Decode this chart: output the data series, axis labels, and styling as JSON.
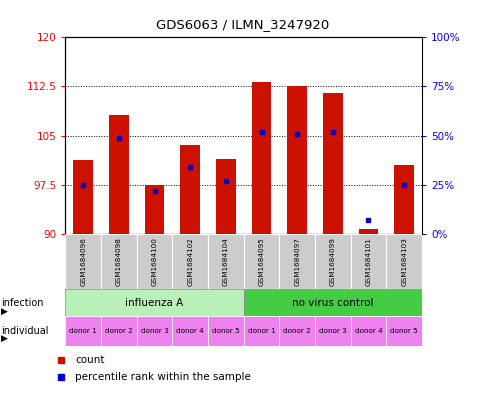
{
  "title": "GDS6063 / ILMN_3247920",
  "samples": [
    "GSM1684096",
    "GSM1684098",
    "GSM1684100",
    "GSM1684102",
    "GSM1684104",
    "GSM1684095",
    "GSM1684097",
    "GSM1684099",
    "GSM1684101",
    "GSM1684103"
  ],
  "red_values": [
    101.2,
    108.2,
    97.5,
    103.5,
    101.5,
    113.2,
    112.5,
    111.5,
    90.8,
    100.5
  ],
  "blue_percentiles": [
    25,
    49,
    22,
    34,
    27,
    52,
    51,
    52,
    7,
    25
  ],
  "ylim_left": [
    90,
    120
  ],
  "ylim_right": [
    0,
    100
  ],
  "yticks_left": [
    90,
    97.5,
    105,
    112.5,
    120
  ],
  "yticks_right": [
    0,
    25,
    50,
    75,
    100
  ],
  "yticklabels_left": [
    "90",
    "97.5",
    "105",
    "112.5",
    "120"
  ],
  "yticklabels_right": [
    "0%",
    "25%",
    "50%",
    "75%",
    "100%"
  ],
  "infection_color_light": "#b8f0b8",
  "infection_color_dark": "#44cc44",
  "individual_color": "#ee82ee",
  "bar_color": "#cc1100",
  "blue_color": "#0000cc",
  "bar_width": 0.55,
  "base_value": 90
}
